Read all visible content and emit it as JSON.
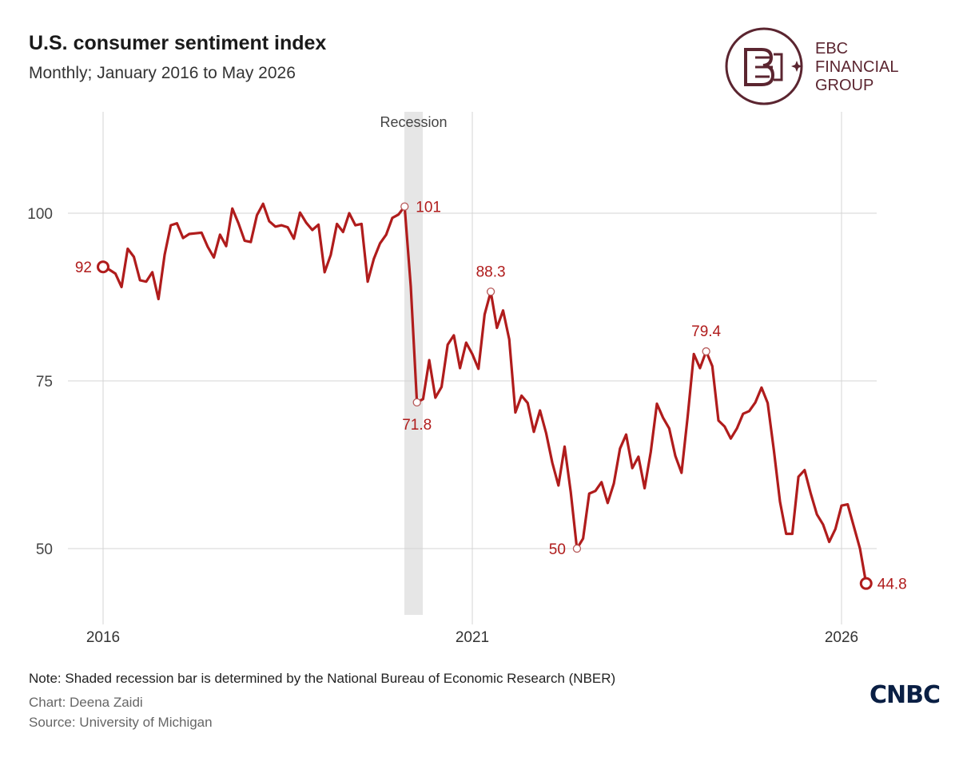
{
  "header": {
    "title": "U.S. consumer sentiment index",
    "subtitle": "Monthly; January 2016 to May 2026"
  },
  "logo": {
    "line1": "EBC",
    "line2": "FINANCIAL",
    "line3": "GROUP",
    "color": "#5b2530"
  },
  "footer": {
    "note": "Note: Shaded recession bar is determined by the National Bureau of Economic Research (NBER)",
    "credit": "Chart: Deena Zaidi",
    "source": "Source: University of Michigan",
    "brand": "CNBC"
  },
  "chart_data": {
    "type": "line",
    "title": "U.S. consumer sentiment index",
    "xlabel": "",
    "ylabel": "",
    "ylim": [
      41,
      116
    ],
    "xlim": [
      2016.0,
      2027.0
    ],
    "y_ticks": [
      50,
      75,
      100
    ],
    "x_ticks": [
      {
        "value": 2016,
        "label": "2016"
      },
      {
        "value": 2021,
        "label": "2021"
      },
      {
        "value": 2026,
        "label": "2026"
      }
    ],
    "grid": true,
    "line_color": "#b01c1c",
    "recession": {
      "start": 2020.08,
      "end": 2020.33,
      "label": "Recession",
      "color": "#e6e6e6"
    },
    "series": [
      {
        "values": [
          [
            2016.0,
            92.0
          ],
          [
            2016.083,
            91.6
          ],
          [
            2016.167,
            91.0
          ],
          [
            2016.25,
            89.0
          ],
          [
            2016.333,
            94.7
          ],
          [
            2016.417,
            93.5
          ],
          [
            2016.5,
            90.0
          ],
          [
            2016.583,
            89.8
          ],
          [
            2016.667,
            91.2
          ],
          [
            2016.75,
            87.2
          ],
          [
            2016.833,
            93.8
          ],
          [
            2016.917,
            98.2
          ],
          [
            2017.0,
            98.5
          ],
          [
            2017.083,
            96.3
          ],
          [
            2017.167,
            96.9
          ],
          [
            2017.25,
            97.0
          ],
          [
            2017.333,
            97.1
          ],
          [
            2017.417,
            95.0
          ],
          [
            2017.5,
            93.4
          ],
          [
            2017.583,
            96.8
          ],
          [
            2017.667,
            95.1
          ],
          [
            2017.75,
            100.7
          ],
          [
            2017.833,
            98.5
          ],
          [
            2017.917,
            95.9
          ],
          [
            2018.0,
            95.7
          ],
          [
            2018.083,
            99.7
          ],
          [
            2018.167,
            101.4
          ],
          [
            2018.25,
            98.8
          ],
          [
            2018.333,
            98.0
          ],
          [
            2018.417,
            98.2
          ],
          [
            2018.5,
            97.9
          ],
          [
            2018.583,
            96.2
          ],
          [
            2018.667,
            100.1
          ],
          [
            2018.75,
            98.6
          ],
          [
            2018.833,
            97.5
          ],
          [
            2018.917,
            98.3
          ],
          [
            2019.0,
            91.2
          ],
          [
            2019.083,
            93.8
          ],
          [
            2019.167,
            98.4
          ],
          [
            2019.25,
            97.2
          ],
          [
            2019.333,
            100.0
          ],
          [
            2019.417,
            98.2
          ],
          [
            2019.5,
            98.4
          ],
          [
            2019.583,
            89.8
          ],
          [
            2019.667,
            93.2
          ],
          [
            2019.75,
            95.5
          ],
          [
            2019.833,
            96.8
          ],
          [
            2019.917,
            99.3
          ],
          [
            2020.0,
            99.8
          ],
          [
            2020.083,
            101.0
          ],
          [
            2020.167,
            89.1
          ],
          [
            2020.25,
            71.8
          ],
          [
            2020.333,
            72.3
          ],
          [
            2020.417,
            78.1
          ],
          [
            2020.5,
            72.5
          ],
          [
            2020.583,
            74.1
          ],
          [
            2020.667,
            80.4
          ],
          [
            2020.75,
            81.8
          ],
          [
            2020.833,
            76.9
          ],
          [
            2020.917,
            80.7
          ],
          [
            2021.0,
            79.0
          ],
          [
            2021.083,
            76.8
          ],
          [
            2021.167,
            84.9
          ],
          [
            2021.25,
            88.3
          ],
          [
            2021.333,
            82.9
          ],
          [
            2021.417,
            85.5
          ],
          [
            2021.5,
            81.2
          ],
          [
            2021.583,
            70.3
          ],
          [
            2021.667,
            72.8
          ],
          [
            2021.75,
            71.7
          ],
          [
            2021.833,
            67.4
          ],
          [
            2021.917,
            70.6
          ],
          [
            2022.0,
            67.2
          ],
          [
            2022.083,
            62.8
          ],
          [
            2022.167,
            59.4
          ],
          [
            2022.25,
            65.2
          ],
          [
            2022.333,
            58.4
          ],
          [
            2022.417,
            50.0
          ],
          [
            2022.5,
            51.5
          ],
          [
            2022.583,
            58.2
          ],
          [
            2022.667,
            58.6
          ],
          [
            2022.75,
            59.9
          ],
          [
            2022.833,
            56.8
          ],
          [
            2022.917,
            59.7
          ],
          [
            2023.0,
            64.9
          ],
          [
            2023.083,
            67.0
          ],
          [
            2023.167,
            62.0
          ],
          [
            2023.25,
            63.7
          ],
          [
            2023.333,
            59.0
          ],
          [
            2023.417,
            64.4
          ],
          [
            2023.5,
            71.6
          ],
          [
            2023.583,
            69.5
          ],
          [
            2023.667,
            67.9
          ],
          [
            2023.75,
            63.8
          ],
          [
            2023.833,
            61.3
          ],
          [
            2023.917,
            69.7
          ],
          [
            2024.0,
            79.0
          ],
          [
            2024.083,
            76.9
          ],
          [
            2024.167,
            79.4
          ],
          [
            2024.25,
            77.2
          ],
          [
            2024.333,
            69.1
          ],
          [
            2024.417,
            68.2
          ],
          [
            2024.5,
            66.4
          ],
          [
            2024.583,
            67.9
          ],
          [
            2024.667,
            70.1
          ],
          [
            2024.75,
            70.5
          ],
          [
            2024.833,
            71.8
          ],
          [
            2024.917,
            74.0
          ],
          [
            2025.0,
            71.7
          ],
          [
            2025.083,
            64.7
          ],
          [
            2025.167,
            57.0
          ],
          [
            2025.25,
            52.2
          ],
          [
            2025.333,
            52.2
          ],
          [
            2025.417,
            60.7
          ],
          [
            2025.5,
            61.7
          ],
          [
            2025.583,
            58.2
          ],
          [
            2025.667,
            55.1
          ],
          [
            2025.75,
            53.6
          ],
          [
            2025.833,
            51.0
          ],
          [
            2025.917,
            52.9
          ],
          [
            2026.0,
            56.4
          ],
          [
            2026.083,
            56.6
          ],
          [
            2026.167,
            53.3
          ],
          [
            2026.25,
            50.0
          ],
          [
            2026.333,
            44.8
          ]
        ]
      }
    ],
    "annotations": [
      {
        "x": 2016.0,
        "y": 92.0,
        "label": "92",
        "side": "left",
        "marker": "big"
      },
      {
        "x": 2020.083,
        "y": 101.0,
        "label": "101",
        "side": "right",
        "marker": "small"
      },
      {
        "x": 2020.25,
        "y": 71.8,
        "label": "71.8",
        "side": "below",
        "marker": "small"
      },
      {
        "x": 2021.25,
        "y": 88.3,
        "label": "88.3",
        "side": "above",
        "marker": "small"
      },
      {
        "x": 2022.417,
        "y": 50.0,
        "label": "50",
        "side": "left",
        "marker": "small"
      },
      {
        "x": 2024.167,
        "y": 79.4,
        "label": "79.4",
        "side": "above",
        "marker": "small"
      },
      {
        "x": 2026.333,
        "y": 44.8,
        "label": "44.8",
        "side": "right",
        "marker": "big"
      }
    ]
  }
}
